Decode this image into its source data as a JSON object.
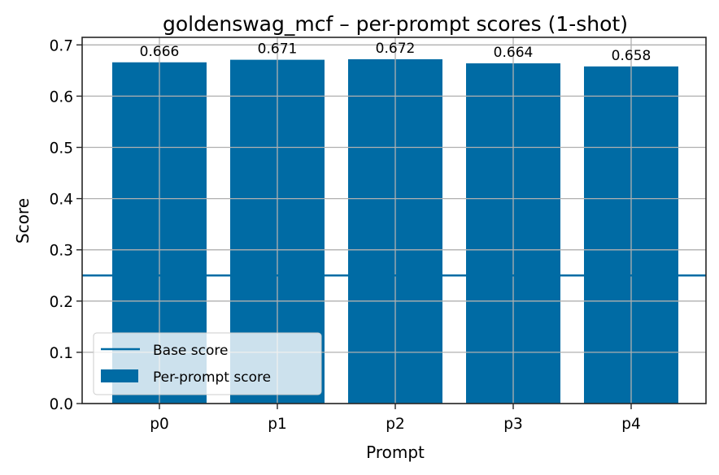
{
  "chart_data": {
    "type": "bar",
    "title": "goldenswag_mcf – per-prompt scores (1-shot)",
    "xlabel": "Prompt",
    "ylabel": "Score",
    "categories": [
      "p0",
      "p1",
      "p2",
      "p3",
      "p4"
    ],
    "series": [
      {
        "name": "Per-prompt score",
        "type": "bar",
        "values": [
          0.666,
          0.671,
          0.672,
          0.664,
          0.658
        ],
        "color": "#006BA4"
      },
      {
        "name": "Base score",
        "type": "hline",
        "value": 0.25,
        "color": "#006BA4"
      }
    ],
    "bar_labels": [
      "0.666",
      "0.671",
      "0.672",
      "0.664",
      "0.658"
    ],
    "ylim": [
      0.0,
      0.705
    ],
    "yticks": [
      0.0,
      0.1,
      0.2,
      0.3,
      0.4,
      0.5,
      0.6,
      0.7
    ],
    "ytick_labels": [
      "0.0",
      "0.1",
      "0.2",
      "0.3",
      "0.4",
      "0.5",
      "0.6",
      "0.7"
    ],
    "grid": true,
    "legend": {
      "position": "lower left",
      "entries": [
        "Base score",
        "Per-prompt score"
      ]
    }
  },
  "colors": {
    "bar": "#006BA4",
    "grid": "#b0b0b0",
    "axes": "#262626"
  }
}
